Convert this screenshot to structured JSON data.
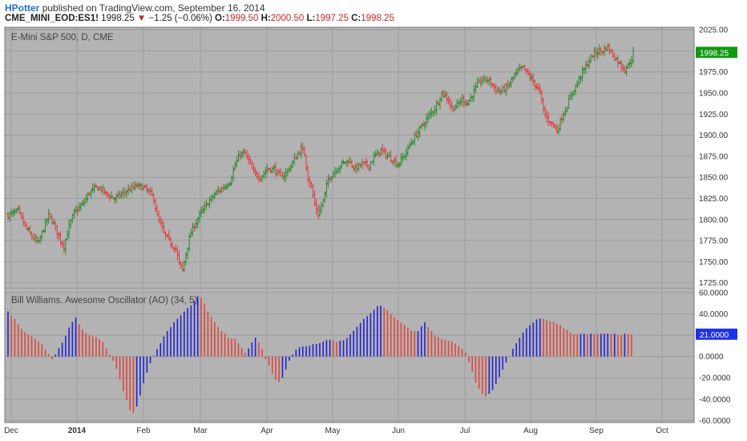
{
  "header": {
    "author": "HPotter",
    "published_text": "published on TradingView.com, September 16, 2014",
    "symbol": "CME_MINI_EOD:ES1!",
    "last_price": "1998.25",
    "change_arrow": "▼",
    "change": "−1.25 (−0.06%)",
    "open_label": "O:",
    "open": "1999.50",
    "high_label": "H:",
    "high": "2000.50",
    "low_label": "L:",
    "low": "1997.25",
    "close_label": "C:",
    "close": "1998.25"
  },
  "colors": {
    "background": "#b3b3b3",
    "up": "#2a8a2a",
    "down": "#e23b3b",
    "ao_up": "#2222d8",
    "ao_down": "#e0473a",
    "price_badge": "#119911",
    "ao_badge": "#1e32e6"
  },
  "chart_data": [
    {
      "type": "ohlc",
      "title": "E-Mini S&P 500, D, CME",
      "x_ticks": [
        "Dec",
        "2014",
        "Feb",
        "Mar",
        "Apr",
        "May",
        "Jun",
        "Jul",
        "Aug",
        "Sep",
        "Oct"
      ],
      "y_ticks": [
        "2025.00",
        "2000.00",
        "1975.00",
        "1950.00",
        "1925.00",
        "1900.00",
        "1875.00",
        "1850.00",
        "1825.00",
        "1800.00",
        "1775.00",
        "1750.00",
        "1725.00"
      ],
      "ylim": [
        1718,
        2028
      ],
      "last_value_label": "1998.25",
      "close_path": [
        [
          0,
          1805
        ],
        [
          6,
          1810
        ],
        [
          10,
          1792
        ],
        [
          14,
          1780
        ],
        [
          18,
          1772
        ],
        [
          20,
          1784
        ],
        [
          24,
          1805
        ],
        [
          27,
          1795
        ],
        [
          31,
          1775
        ],
        [
          33,
          1768
        ],
        [
          36,
          1792
        ],
        [
          39,
          1808
        ],
        [
          44,
          1818
        ],
        [
          48,
          1832
        ],
        [
          52,
          1838
        ],
        [
          55,
          1836
        ],
        [
          58,
          1830
        ],
        [
          63,
          1825
        ],
        [
          67,
          1830
        ],
        [
          71,
          1835
        ],
        [
          76,
          1840
        ],
        [
          80,
          1838
        ],
        [
          83,
          1833
        ],
        [
          86,
          1825
        ],
        [
          88,
          1804
        ],
        [
          92,
          1784
        ],
        [
          96,
          1772
        ],
        [
          99,
          1765
        ],
        [
          101,
          1748
        ],
        [
          103,
          1740
        ],
        [
          105,
          1760
        ],
        [
          108,
          1785
        ],
        [
          113,
          1805
        ],
        [
          118,
          1820
        ],
        [
          123,
          1832
        ],
        [
          127,
          1838
        ],
        [
          131,
          1845
        ],
        [
          134,
          1865
        ],
        [
          137,
          1878
        ],
        [
          140,
          1878
        ],
        [
          142,
          1870
        ],
        [
          145,
          1855
        ],
        [
          149,
          1850
        ],
        [
          153,
          1860
        ],
        [
          157,
          1860
        ],
        [
          161,
          1850
        ],
        [
          164,
          1855
        ],
        [
          167,
          1864
        ],
        [
          171,
          1878
        ],
        [
          173,
          1884
        ],
        [
          175,
          1878
        ],
        [
          177,
          1850
        ],
        [
          179,
          1838
        ],
        [
          181,
          1818
        ],
        [
          183,
          1806
        ],
        [
          186,
          1822
        ],
        [
          189,
          1848
        ],
        [
          193,
          1858
        ],
        [
          197,
          1866
        ],
        [
          201,
          1870
        ],
        [
          205,
          1860
        ],
        [
          209,
          1866
        ],
        [
          213,
          1864
        ],
        [
          216,
          1874
        ],
        [
          220,
          1882
        ],
        [
          223,
          1877
        ],
        [
          227,
          1871
        ],
        [
          230,
          1865
        ],
        [
          234,
          1876
        ],
        [
          237,
          1888
        ],
        [
          240,
          1898
        ],
        [
          244,
          1910
        ],
        [
          248,
          1922
        ],
        [
          252,
          1932
        ],
        [
          254,
          1940
        ],
        [
          256,
          1950
        ],
        [
          259,
          1945
        ],
        [
          262,
          1932
        ],
        [
          265,
          1935
        ],
        [
          268,
          1943
        ],
        [
          271,
          1938
        ],
        [
          274,
          1948
        ],
        [
          277,
          1960
        ],
        [
          280,
          1966
        ],
        [
          283,
          1966
        ],
        [
          285,
          1962
        ],
        [
          288,
          1954
        ],
        [
          291,
          1952
        ],
        [
          295,
          1958
        ],
        [
          298,
          1968
        ],
        [
          301,
          1976
        ],
        [
          304,
          1980
        ],
        [
          307,
          1972
        ],
        [
          309,
          1966
        ],
        [
          312,
          1958
        ],
        [
          314,
          1950
        ],
        [
          316,
          1930
        ],
        [
          318,
          1920
        ],
        [
          320,
          1916
        ],
        [
          322,
          1912
        ],
        [
          324,
          1905
        ],
        [
          327,
          1922
        ],
        [
          330,
          1935
        ],
        [
          333,
          1950
        ],
        [
          336,
          1962
        ],
        [
          339,
          1975
        ],
        [
          342,
          1985
        ],
        [
          345,
          1995
        ],
        [
          348,
          2000
        ],
        [
          351,
          2000
        ],
        [
          354,
          2005
        ],
        [
          357,
          1995
        ],
        [
          359,
          1990
        ],
        [
          361,
          1985
        ],
        [
          364,
          1978
        ],
        [
          366,
          1983
        ],
        [
          368,
          1990
        ],
        [
          369,
          1998.25
        ]
      ]
    },
    {
      "type": "bar",
      "title": "Bill Williams. Awesome Oscillator (AO) (34, 5)",
      "y_ticks": [
        "60.0000",
        "40.0000",
        "20.0000",
        "0.0000",
        "-20.0000",
        "-40.0000",
        "-60.0000"
      ],
      "ylim": [
        -62,
        63
      ],
      "last_value_label": "21.0000",
      "ao_path": [
        [
          0,
          42
        ],
        [
          4,
          35
        ],
        [
          9,
          24
        ],
        [
          15,
          18
        ],
        [
          20,
          12
        ],
        [
          24,
          2
        ],
        [
          26,
          -2
        ],
        [
          28,
          2
        ],
        [
          31,
          10
        ],
        [
          34,
          20
        ],
        [
          37,
          30
        ],
        [
          40,
          36
        ],
        [
          43,
          28
        ],
        [
          46,
          22
        ],
        [
          52,
          18
        ],
        [
          56,
          14
        ],
        [
          60,
          2
        ],
        [
          62,
          -4
        ],
        [
          65,
          -16
        ],
        [
          68,
          -32
        ],
        [
          71,
          -46
        ],
        [
          73,
          -54
        ],
        [
          75,
          -52
        ],
        [
          78,
          -36
        ],
        [
          81,
          -20
        ],
        [
          84,
          -6
        ],
        [
          87,
          4
        ],
        [
          91,
          16
        ],
        [
          95,
          26
        ],
        [
          99,
          34
        ],
        [
          104,
          42
        ],
        [
          109,
          50
        ],
        [
          112,
          56
        ],
        [
          115,
          54
        ],
        [
          118,
          42
        ],
        [
          122,
          32
        ],
        [
          126,
          24
        ],
        [
          130,
          18
        ],
        [
          134,
          16
        ],
        [
          137,
          10
        ],
        [
          140,
          4
        ],
        [
          143,
          10
        ],
        [
          146,
          18
        ],
        [
          149,
          12
        ],
        [
          152,
          -2
        ],
        [
          155,
          -12
        ],
        [
          157,
          -20
        ],
        [
          160,
          -24
        ],
        [
          163,
          -18
        ],
        [
          165,
          -6
        ],
        [
          168,
          2
        ],
        [
          171,
          8
        ],
        [
          177,
          10
        ],
        [
          182,
          12
        ],
        [
          189,
          16
        ],
        [
          194,
          14
        ],
        [
          199,
          16
        ],
        [
          203,
          22
        ],
        [
          207,
          30
        ],
        [
          212,
          38
        ],
        [
          216,
          44
        ],
        [
          219,
          48
        ],
        [
          222,
          46
        ],
        [
          226,
          40
        ],
        [
          230,
          34
        ],
        [
          234,
          30
        ],
        [
          238,
          24
        ],
        [
          242,
          24
        ],
        [
          246,
          32
        ],
        [
          249,
          26
        ],
        [
          252,
          20
        ],
        [
          256,
          16
        ],
        [
          262,
          14
        ],
        [
          266,
          10
        ],
        [
          270,
          4
        ],
        [
          273,
          -10
        ],
        [
          276,
          -24
        ],
        [
          279,
          -34
        ],
        [
          282,
          -38
        ],
        [
          285,
          -34
        ],
        [
          288,
          -26
        ],
        [
          292,
          -12
        ],
        [
          296,
          0
        ],
        [
          299,
          10
        ],
        [
          303,
          20
        ],
        [
          307,
          28
        ],
        [
          311,
          34
        ],
        [
          315,
          36
        ],
        [
          319,
          34
        ],
        [
          323,
          32
        ],
        [
          327,
          28
        ],
        [
          331,
          24
        ],
        [
          333,
          22
        ],
        [
          335,
          21
        ]
      ]
    }
  ]
}
